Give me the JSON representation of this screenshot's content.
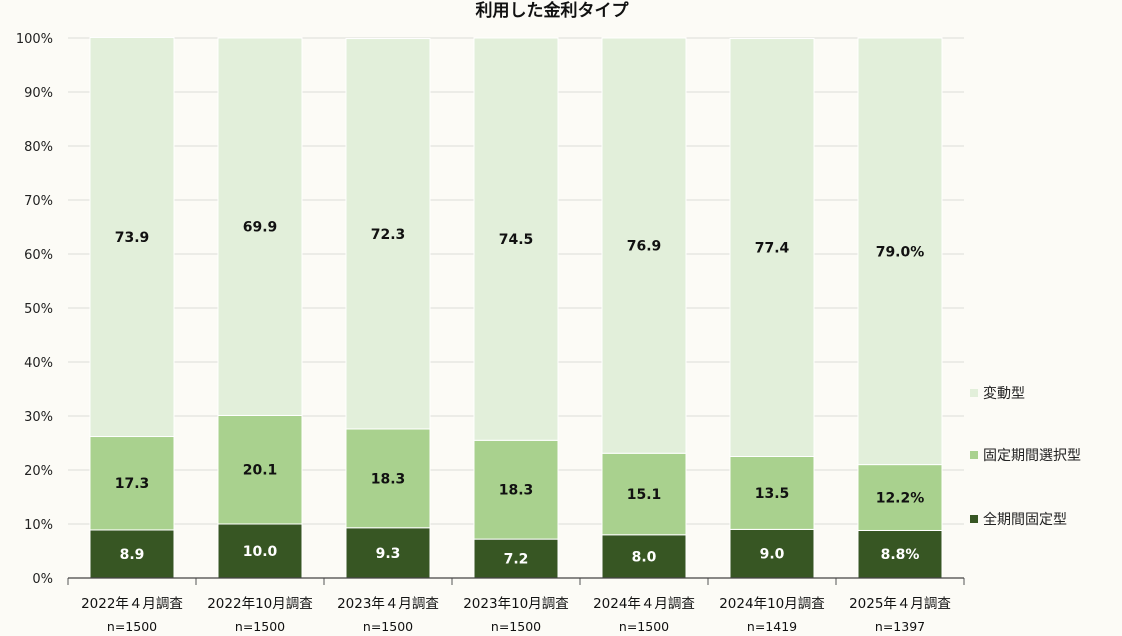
{
  "chart_data": {
    "type": "bar",
    "stacked": true,
    "title": "利用した金利タイプ",
    "categories": [
      "2022年４月調査",
      "2022年10月調査",
      "2023年４月調査",
      "2023年10月調査",
      "2024年４月調査",
      "2024年10月調査",
      "2025年４月調査"
    ],
    "sample_sizes": [
      "n=1500",
      "n=1500",
      "n=1500",
      "n=1500",
      "n=1500",
      "n=1419",
      "n=1397"
    ],
    "series": [
      {
        "name": "全期間固定型",
        "color": "#375623",
        "values": [
          8.9,
          10.0,
          9.3,
          7.2,
          8.0,
          9.0,
          8.8
        ],
        "labels": [
          "8.9",
          "10.0",
          "9.3",
          "7.2",
          "8.0",
          "9.0",
          "8.8%"
        ]
      },
      {
        "name": "固定期間選択型",
        "color": "#a9d18e",
        "values": [
          17.3,
          20.1,
          18.3,
          18.3,
          15.1,
          13.5,
          12.2
        ],
        "labels": [
          "17.3",
          "20.1",
          "18.3",
          "18.3",
          "15.1",
          "13.5",
          "12.2%"
        ]
      },
      {
        "name": "変動型",
        "color": "#e2efda",
        "values": [
          73.9,
          69.9,
          72.3,
          74.5,
          76.9,
          77.4,
          79.0
        ],
        "labels": [
          "73.9",
          "69.9",
          "72.3",
          "74.5",
          "76.9",
          "77.4",
          "79.0%"
        ]
      }
    ],
    "yticks": [
      "0%",
      "10%",
      "20%",
      "30%",
      "40%",
      "50%",
      "60%",
      "70%",
      "80%",
      "90%",
      "100%"
    ],
    "ylim": [
      0,
      100
    ],
    "grid": true,
    "legend_position": "right"
  }
}
